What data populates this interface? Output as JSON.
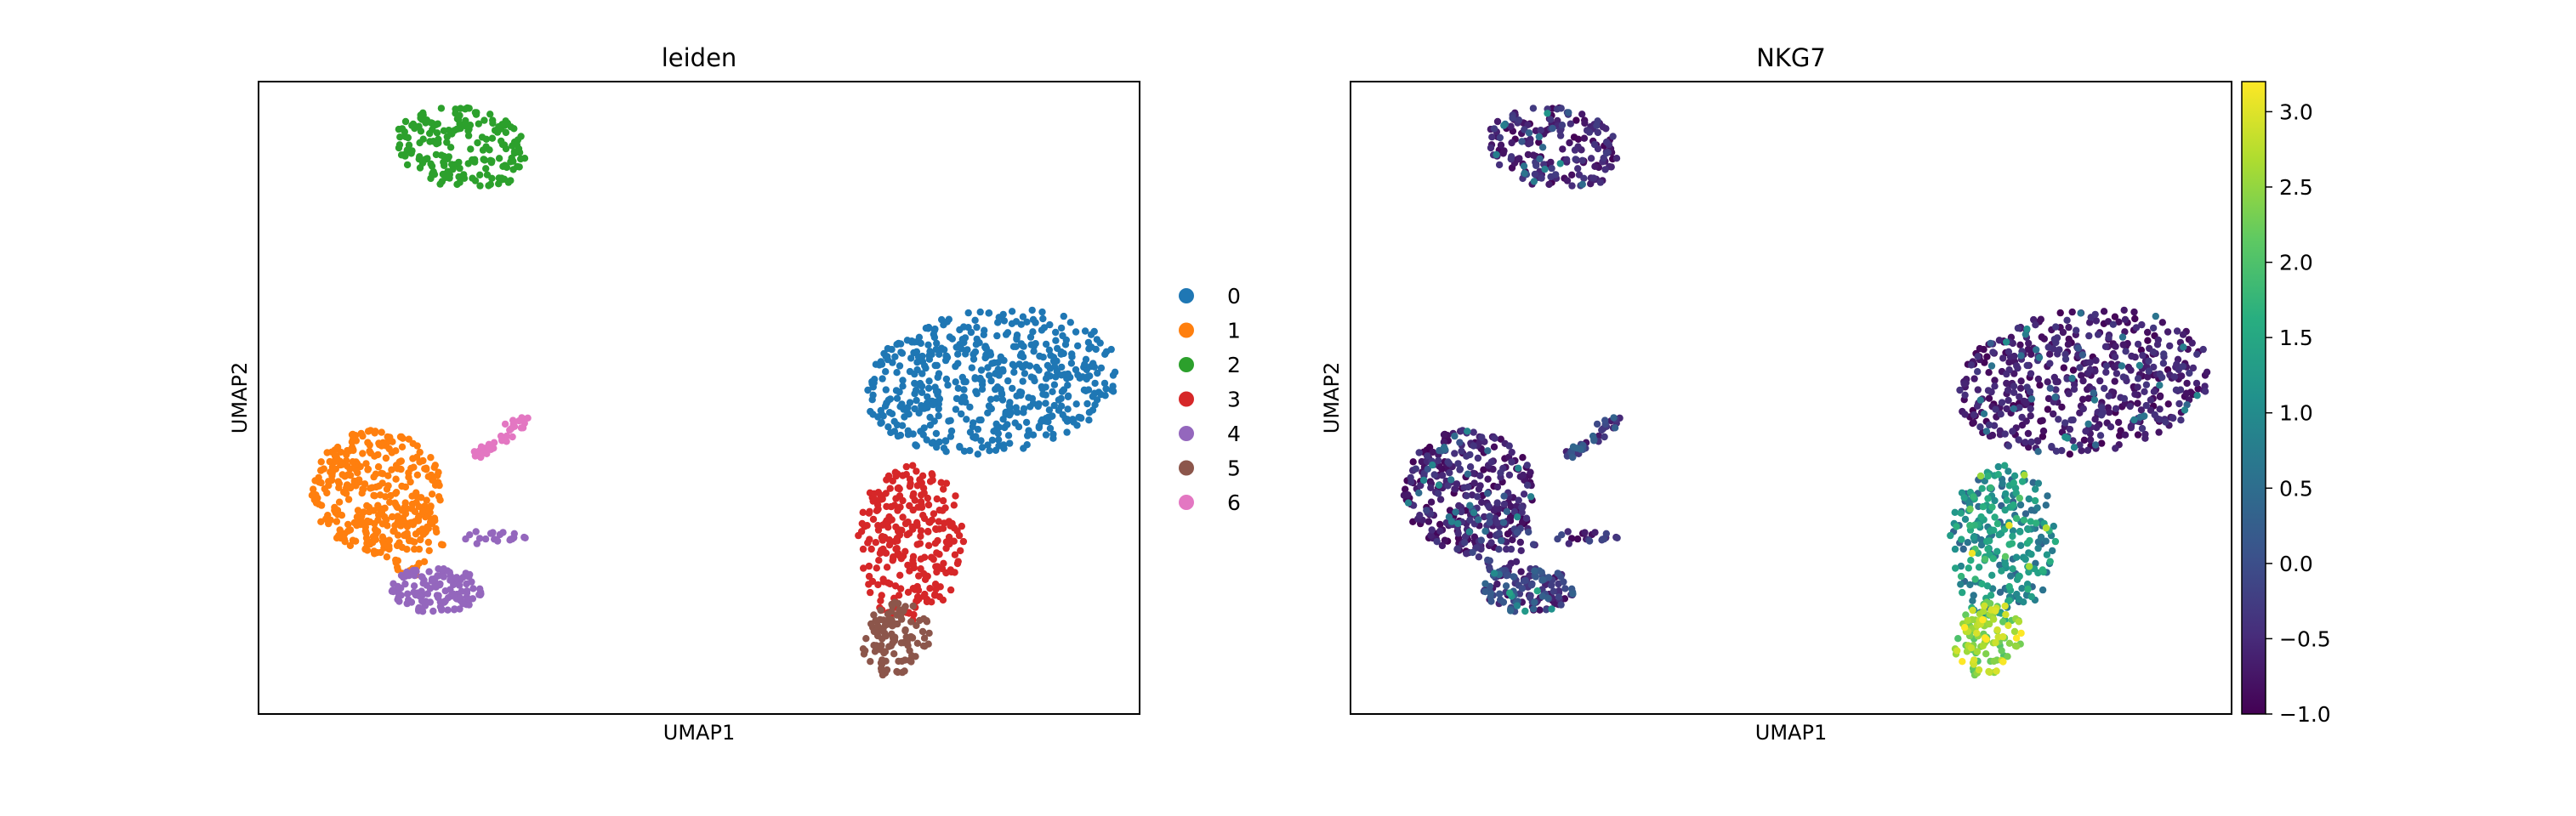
{
  "chart_data": [
    {
      "type": "scatter",
      "title": "leiden",
      "xlabel": "UMAP1",
      "ylabel": "UMAP2",
      "color_by": "categorical",
      "legend_position": "right",
      "legend": [
        {
          "label": "0",
          "color": "#1f77b4"
        },
        {
          "label": "1",
          "color": "#ff7f0e"
        },
        {
          "label": "2",
          "color": "#2ca02c"
        },
        {
          "label": "3",
          "color": "#d62728"
        },
        {
          "label": "4",
          "color": "#9467bd"
        },
        {
          "label": "5",
          "color": "#8c564b"
        },
        {
          "label": "6",
          "color": "#e377c2"
        }
      ],
      "grid": false,
      "ticks_visible": false
    },
    {
      "type": "scatter",
      "title": "NKG7",
      "xlabel": "UMAP1",
      "ylabel": "UMAP2",
      "color_by": "continuous",
      "colormap": "viridis",
      "colorbar": {
        "min": -1.0,
        "max": 3.2,
        "ticks": [
          "3.0",
          "2.5",
          "2.0",
          "1.5",
          "1.0",
          "0.5",
          "0.0",
          "−0.5",
          "−1.0"
        ],
        "tick_values": [
          3.0,
          2.5,
          2.0,
          1.5,
          1.0,
          0.5,
          0.0,
          -0.5,
          -1.0
        ]
      },
      "grid": false,
      "ticks_visible": false
    }
  ]
}
